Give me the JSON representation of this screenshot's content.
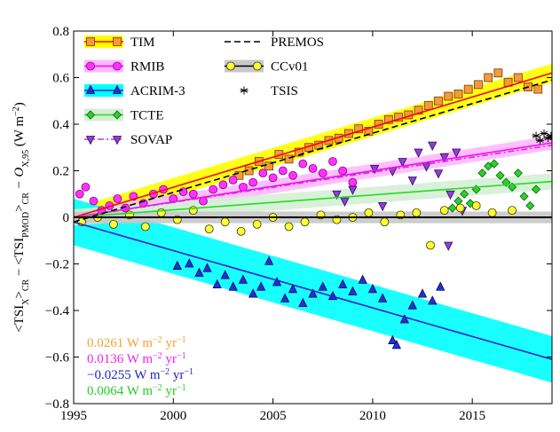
{
  "chart_data": {
    "type": "scatter",
    "ylabel_parts": [
      "<TSI",
      "X",
      ">",
      "CR",
      " − <TSI",
      "PMOD",
      ">",
      "CR",
      " − O",
      "X,95",
      " (W m",
      "−2",
      ")"
    ],
    "xlim": [
      1995,
      2019
    ],
    "xticks": [
      1995,
      2000,
      2005,
      2010,
      2015
    ],
    "ylim": [
      -0.8,
      0.8
    ],
    "yticks": [
      {
        "value": -0.8,
        "label": "−0.8"
      },
      {
        "value": -0.6,
        "label": "−0.6"
      },
      {
        "value": -0.4,
        "label": "−0.4"
      },
      {
        "value": -0.2,
        "label": "−0.2"
      },
      0,
      0.2,
      0.4,
      0.6,
      0.8
    ],
    "annotations": [
      {
        "parts": [
          "0.0261 W m",
          "−2",
          " yr",
          "−1"
        ],
        "color": "#f5a030"
      },
      {
        "parts": [
          "0.0136 W m",
          "−2",
          " yr",
          "−1"
        ],
        "color": "#ee22ee"
      },
      {
        "parts": [
          "−0.0255 W m",
          "−2",
          " yr",
          "−1"
        ],
        "color": "#2222cc"
      },
      {
        "parts": [
          "0.0064 W m",
          "−2",
          " yr",
          "−1"
        ],
        "color": "#22cc22"
      }
    ],
    "series": [
      {
        "name": "TIM",
        "marker": "square",
        "color": "#f59a3a",
        "edge": "#7a3a00",
        "line": "#ff0000",
        "dash": "solid",
        "band_color": "#ffff00",
        "band": 0.04,
        "trend_x": [
          1995,
          2019
        ],
        "trend_y": [
          0,
          0.62
        ],
        "x": [
          2003.3,
          2003.8,
          2004.3,
          2004.8,
          2005.3,
          2005.8,
          2006.3,
          2006.8,
          2007.3,
          2007.8,
          2008.3,
          2008.8,
          2009.3,
          2009.8,
          2010.3,
          2010.8,
          2011.3,
          2011.8,
          2012.3,
          2012.8,
          2013.3,
          2013.8,
          2014.3,
          2014.8,
          2015.3,
          2015.8,
          2016.3,
          2016.8,
          2017.3,
          2017.8,
          2018.3
        ],
        "values": [
          0.18,
          0.2,
          0.24,
          0.22,
          0.27,
          0.25,
          0.28,
          0.3,
          0.31,
          0.33,
          0.34,
          0.36,
          0.38,
          0.37,
          0.4,
          0.42,
          0.43,
          0.44,
          0.46,
          0.48,
          0.5,
          0.52,
          0.53,
          0.55,
          0.57,
          0.6,
          0.62,
          0.58,
          0.6,
          0.56,
          0.55
        ]
      },
      {
        "name": "RMIB",
        "marker": "circle",
        "color": "#ff33ff",
        "edge": "#880088",
        "line": "#ff00ff",
        "dash": "solid",
        "band_color": "#ffb8ff",
        "band": 0.03,
        "trend_x": [
          1995,
          2019
        ],
        "trend_y": [
          0,
          0.32
        ],
        "x": [
          1995.3,
          1995.6,
          1996,
          1996.4,
          1996.8,
          1997.2,
          1997.6,
          1998,
          1998.5,
          1999,
          1999.5,
          2000,
          2000.5,
          2001,
          2001.5,
          2002,
          2002.5,
          2003,
          2003.5,
          2004,
          2004.5,
          2005,
          2005.5,
          2006,
          2006.5,
          2007,
          2007.5,
          2008,
          2008.5,
          2009
        ],
        "values": [
          0.1,
          0.13,
          0.07,
          0.03,
          0.05,
          0.08,
          0.04,
          0.09,
          0.06,
          0.1,
          0.12,
          0.08,
          0.11,
          0.1,
          0.07,
          0.12,
          0.14,
          0.16,
          0.13,
          0.15,
          0.19,
          0.17,
          0.2,
          0.18,
          0.23,
          0.21,
          0.19,
          0.24,
          0.2,
          0.15
        ]
      },
      {
        "name": "ACRIM-3",
        "marker": "triangle",
        "color": "#2233cc",
        "edge": "#000060",
        "line": "#2222cc",
        "dash": "solid",
        "band_color": "#00ffff",
        "band": 0.1,
        "trend_x": [
          1995,
          2019
        ],
        "trend_y": [
          -0.02,
          -0.61
        ],
        "x": [
          2000.2,
          2000.8,
          2001.3,
          2001.7,
          2002.2,
          2002.6,
          2003,
          2003.5,
          2004,
          2004.4,
          2004.8,
          2005.2,
          2005.6,
          2006,
          2006.5,
          2007,
          2007.5,
          2008,
          2008.5,
          2009,
          2009.5,
          2010,
          2010.5,
          2011,
          2011.2,
          2011.6,
          2012,
          2012.5,
          2013,
          2013.4
        ],
        "values": [
          -0.21,
          -0.2,
          -0.24,
          -0.22,
          -0.29,
          -0.25,
          -0.3,
          -0.27,
          -0.33,
          -0.3,
          -0.19,
          -0.28,
          -0.35,
          -0.31,
          -0.37,
          -0.33,
          -0.3,
          -0.34,
          -0.29,
          -0.32,
          -0.27,
          -0.31,
          -0.35,
          -0.53,
          -0.55,
          -0.44,
          -0.38,
          -0.33,
          -0.36,
          -0.3
        ]
      },
      {
        "name": "TCTE",
        "marker": "diamond",
        "color": "#33cc33",
        "edge": "#006600",
        "line": "#22dd22",
        "dash": "solid",
        "band_color": "#d4efd4",
        "band": 0.035,
        "trend_x": [
          1995,
          2019
        ],
        "trend_y": [
          0,
          0.154
        ],
        "x": [
          2014,
          2014.3,
          2014.6,
          2014.9,
          2015.2,
          2015.5,
          2015.8,
          2016.1,
          2016.4,
          2016.7,
          2017,
          2017.3,
          2017.6,
          2017.9,
          2018.2
        ],
        "values": [
          0.04,
          0.07,
          0.1,
          0.06,
          0.12,
          0.19,
          0.22,
          0.23,
          0.18,
          0.15,
          0.13,
          0.19,
          0.09,
          0.05,
          0.12
        ]
      },
      {
        "name": "SOVAP",
        "marker": "downtriangle",
        "color": "#8844cc",
        "edge": "#330066",
        "line": "#cc33cc",
        "dash": "dashdot",
        "trend_x": [
          1995,
          2019
        ],
        "trend_y": [
          0,
          0.31
        ],
        "x": [
          2008.2,
          2008.6,
          2009,
          2010.1,
          2010.5,
          2011,
          2011.5,
          2012,
          2012.3,
          2012.7,
          2013,
          2013.3,
          2013.6,
          2013.9,
          2014.2,
          2014.5,
          2013.8
        ],
        "values": [
          0.1,
          0.07,
          0.12,
          0.21,
          0.05,
          0.2,
          0.24,
          0.16,
          0.28,
          0.22,
          0.31,
          0.19,
          0.26,
          0.1,
          0.28,
          0.03,
          -0.12
        ]
      },
      {
        "name": "PREMOS",
        "line": "#000000",
        "dash": "dashed",
        "trend_x": [
          1995,
          2019
        ],
        "trend_y": [
          -0.02,
          0.59
        ]
      },
      {
        "name": "CCv01",
        "marker": "circle",
        "color": "#ffff33",
        "edge": "#333300",
        "line": "#000000",
        "dash": "solid",
        "band_color": "#c8c8c8",
        "band": 0.025,
        "trend_x": [
          1995,
          2019
        ],
        "trend_y": [
          0,
          0
        ],
        "x": [
          1995.4,
          1996.2,
          1997,
          1997.8,
          1998.6,
          1999.4,
          2000.2,
          2001,
          2001.8,
          2002.6,
          2003.4,
          2004.2,
          2005,
          2005.8,
          2006.6,
          2007.4,
          2008.2,
          2009,
          2009.8,
          2010.6,
          2011.4,
          2012.2,
          2012.9,
          2013.6,
          2014.4,
          2015.2,
          2016,
          2017
        ],
        "values": [
          -0.02,
          0,
          -0.03,
          0.01,
          -0.04,
          0.02,
          -0.01,
          0.03,
          -0.05,
          -0.02,
          -0.06,
          -0.03,
          0,
          -0.04,
          -0.02,
          0.01,
          -0.01,
          0,
          0.02,
          -0.02,
          0.01,
          0.02,
          -0.12,
          0.03,
          0.04,
          0.05,
          0.02,
          0.03
        ]
      },
      {
        "name": "TSIS",
        "marker": "asterisk",
        "color": "#000000",
        "edge": "#000000",
        "x": [
          2018.2,
          2018.4,
          2018.6,
          2018.8,
          2018.95
        ],
        "values": [
          0.35,
          0.33,
          0.36,
          0.34,
          0.35
        ]
      }
    ]
  }
}
